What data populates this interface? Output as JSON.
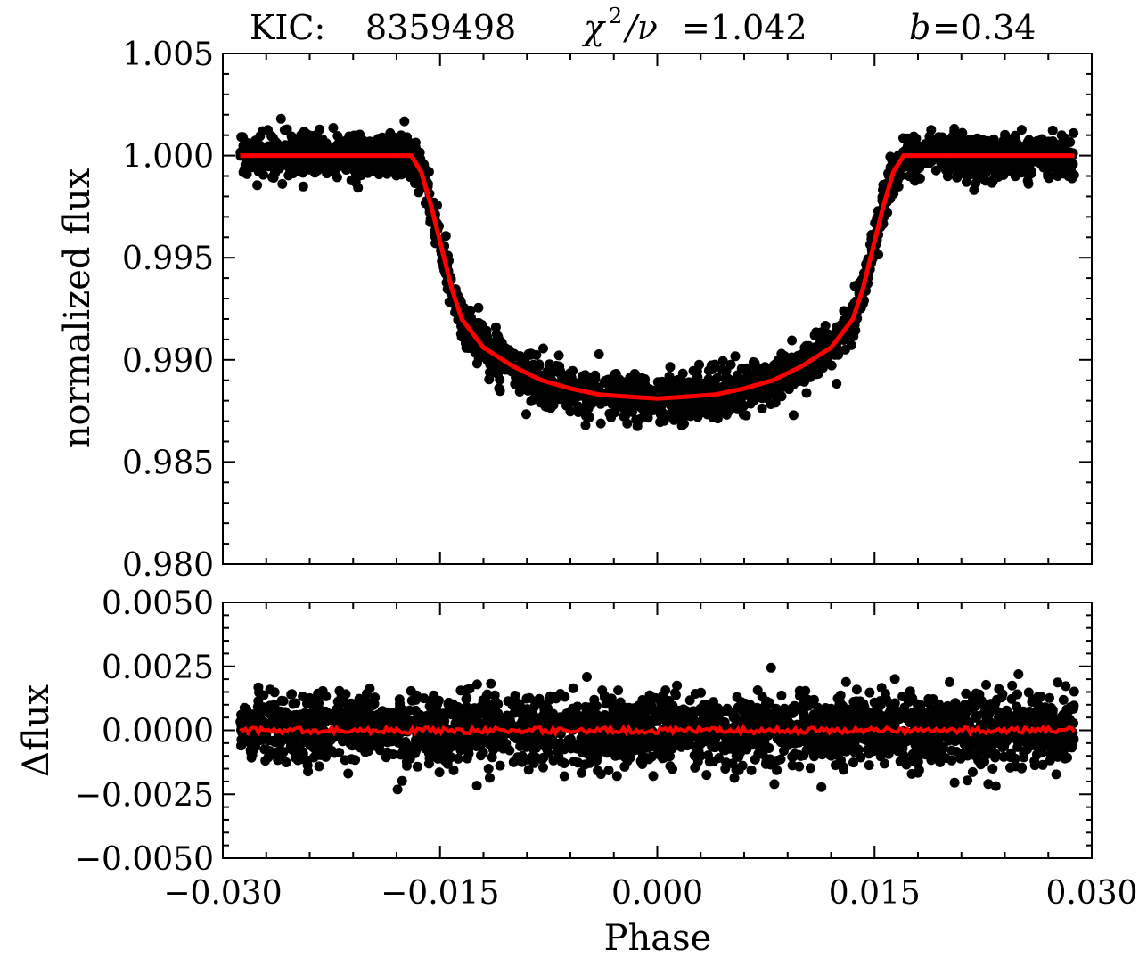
{
  "chart_data": [
    {
      "type": "scatter",
      "panel": "top",
      "title": {
        "kic_label": "KIC:",
        "kic_id": "8359498",
        "chi_symbol": "χ",
        "chi_power": "2",
        "chi_rest": "/ν",
        "chi_value": "=1.042",
        "b_symbol": "b",
        "b_value": "=0.34"
      },
      "ylabel": "normalized  flux",
      "xlim": [
        -0.03,
        0.03
      ],
      "ylim": [
        0.98,
        1.005
      ],
      "yticks": [
        0.98,
        0.985,
        0.99,
        0.995,
        1.0,
        1.005
      ],
      "ytick_labels": [
        "0.980",
        "0.985",
        "0.990",
        "0.995",
        "1.000",
        "1.005"
      ],
      "series": [
        {
          "kind": "scatter",
          "color": "#000000",
          "x_range": [
            -0.0288,
            0.0288
          ],
          "noise_sigma": 0.0007,
          "description_from_plot": "phase-folded observed flux points"
        },
        {
          "kind": "line",
          "color": "#ff0000",
          "x": [
            -0.0288,
            -0.017,
            -0.0163,
            -0.0156,
            -0.0149,
            -0.0142,
            -0.0135,
            -0.012,
            -0.01,
            -0.008,
            -0.006,
            -0.004,
            -0.002,
            0.0,
            0.002,
            0.004,
            0.006,
            0.008,
            0.01,
            0.012,
            0.0135,
            0.0142,
            0.0149,
            0.0156,
            0.0163,
            0.017,
            0.0288
          ],
          "y": [
            1.0,
            1.0,
            0.9992,
            0.9975,
            0.9955,
            0.9935,
            0.992,
            0.9906,
            0.9897,
            0.989,
            0.9886,
            0.9883,
            0.9882,
            0.9881,
            0.9882,
            0.9883,
            0.9886,
            0.989,
            0.9897,
            0.9906,
            0.992,
            0.9935,
            0.9955,
            0.9975,
            0.9992,
            1.0,
            1.0
          ]
        }
      ]
    },
    {
      "type": "scatter",
      "panel": "bottom",
      "ylabel": "Δflux",
      "xlabel": "Phase",
      "xlim": [
        -0.03,
        0.03
      ],
      "ylim": [
        -0.005,
        0.005
      ],
      "xticks": [
        -0.03,
        -0.015,
        0.0,
        0.015,
        0.03
      ],
      "xtick_labels": [
        "−0.030",
        "−0.015",
        "0.000",
        "0.015",
        "0.030"
      ],
      "yticks": [
        -0.005,
        -0.0025,
        0.0,
        0.0025,
        0.005
      ],
      "ytick_labels": [
        "−0.0050",
        "−0.0025",
        "0.0000",
        "0.0025",
        "0.0050"
      ],
      "series": [
        {
          "kind": "scatter",
          "color": "#000000",
          "x_range": [
            -0.0288,
            0.0288
          ],
          "noise_sigma": 0.0009
        },
        {
          "kind": "line",
          "color": "#ff0000",
          "x_range": [
            -0.0288,
            0.0288
          ],
          "y_center": 0.0,
          "y_jitter": 0.00012
        }
      ]
    }
  ]
}
